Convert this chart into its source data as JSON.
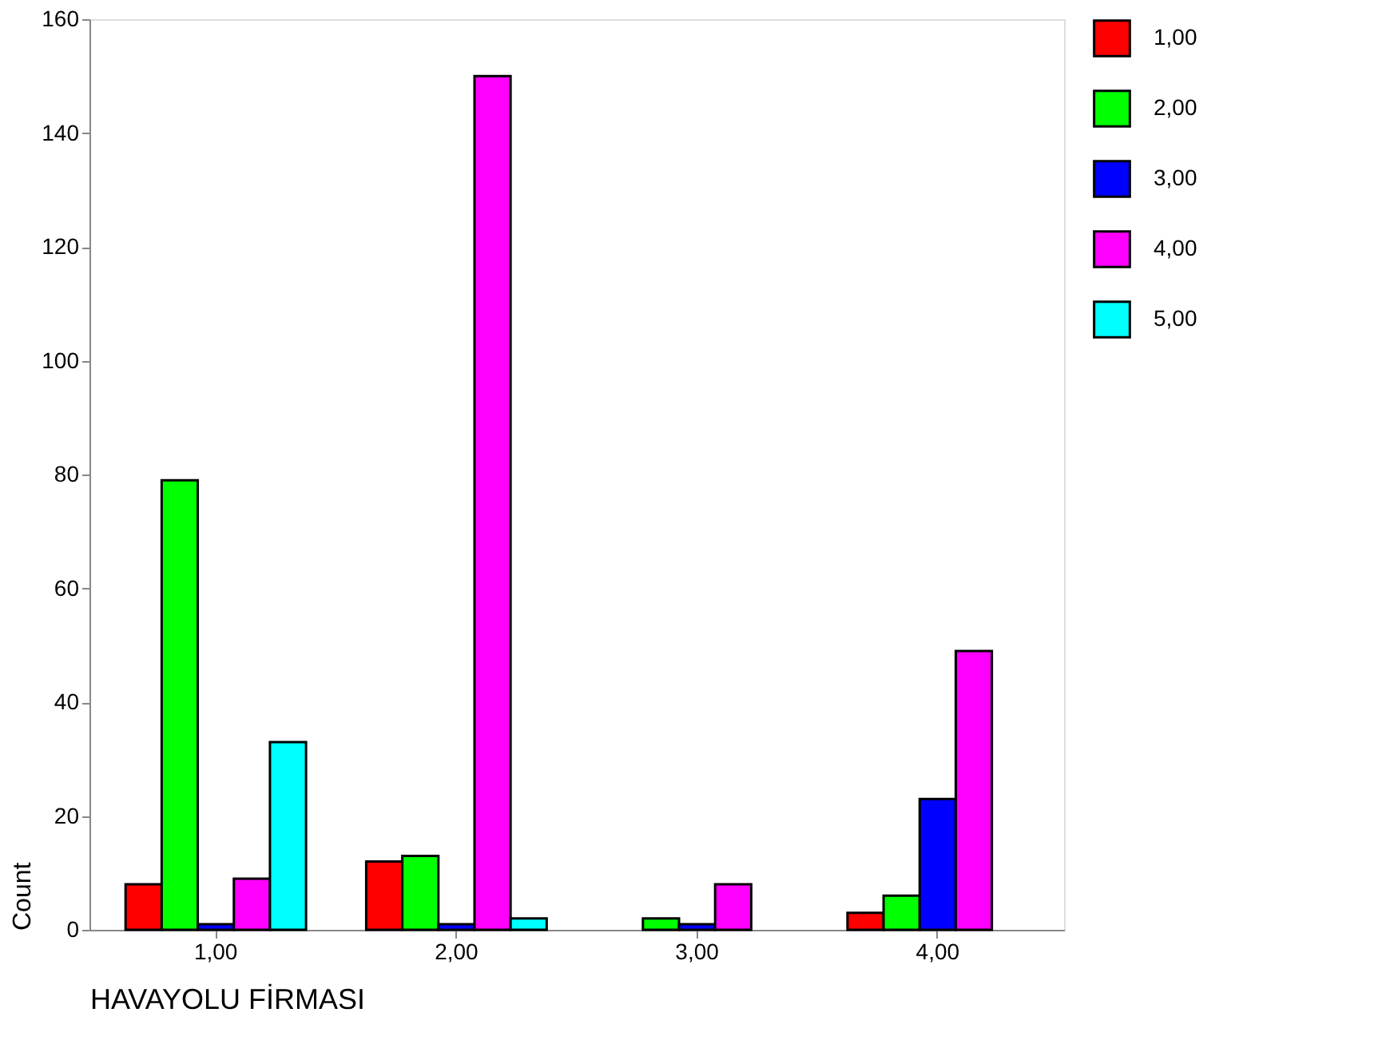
{
  "chart_data": {
    "type": "bar",
    "xlabel": "HAVAYOLU FİRMASI",
    "ylabel": "Count",
    "categories": [
      "1,00",
      "2,00",
      "3,00",
      "4,00"
    ],
    "series": [
      {
        "name": "1,00",
        "color": "#ff0000",
        "values": [
          8,
          12,
          null,
          3
        ]
      },
      {
        "name": "2,00",
        "color": "#00ff00",
        "values": [
          79,
          13,
          2,
          6
        ]
      },
      {
        "name": "3,00",
        "color": "#0000ff",
        "values": [
          1,
          1,
          1,
          23
        ]
      },
      {
        "name": "4,00",
        "color": "#ff00ff",
        "values": [
          9,
          150,
          8,
          49
        ]
      },
      {
        "name": "5,00",
        "color": "#00ffff",
        "values": [
          33,
          2,
          null,
          null
        ]
      }
    ],
    "ylim": [
      0,
      160
    ],
    "yticks": [
      0,
      20,
      40,
      60,
      80,
      100,
      120,
      140,
      160
    ],
    "grid": false,
    "legend": "right"
  }
}
